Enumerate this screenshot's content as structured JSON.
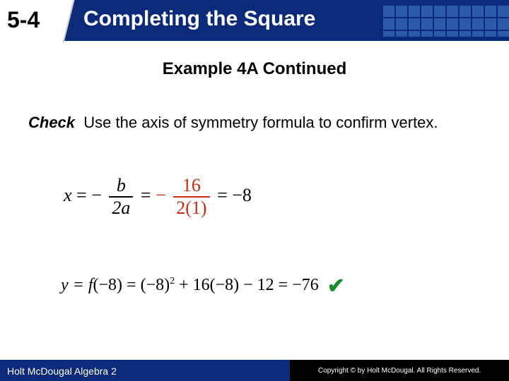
{
  "header": {
    "lesson_number": "5-4",
    "title": "Completing the Square",
    "bar_color": "#0b2a7a"
  },
  "example_heading": "Example 4A Continued",
  "check": {
    "label": "Check",
    "text": "Use the axis of symmetry formula to confirm vertex."
  },
  "formula": {
    "lhs_var": "x",
    "eq1": "=",
    "minus1": "−",
    "frac1_num": "b",
    "frac1_den": "2a",
    "eq2": "=",
    "minus2": "−",
    "frac2_num": "16",
    "frac2_den": "2(1)",
    "eq3": "=",
    "rhs": "−8",
    "red_color": "#cc2b14"
  },
  "ycalc": {
    "expr_prefix": "y = f",
    "expr_rest": "(−8) = (−8)",
    "sup": "2",
    "tail": " + 16(−8) − 12 = −76",
    "check_color": "#1a8c2e"
  },
  "footer": {
    "text": "Holt McDougal Algebra 2",
    "copyright": "Copyright © by Holt McDougal. All Rights Reserved."
  }
}
